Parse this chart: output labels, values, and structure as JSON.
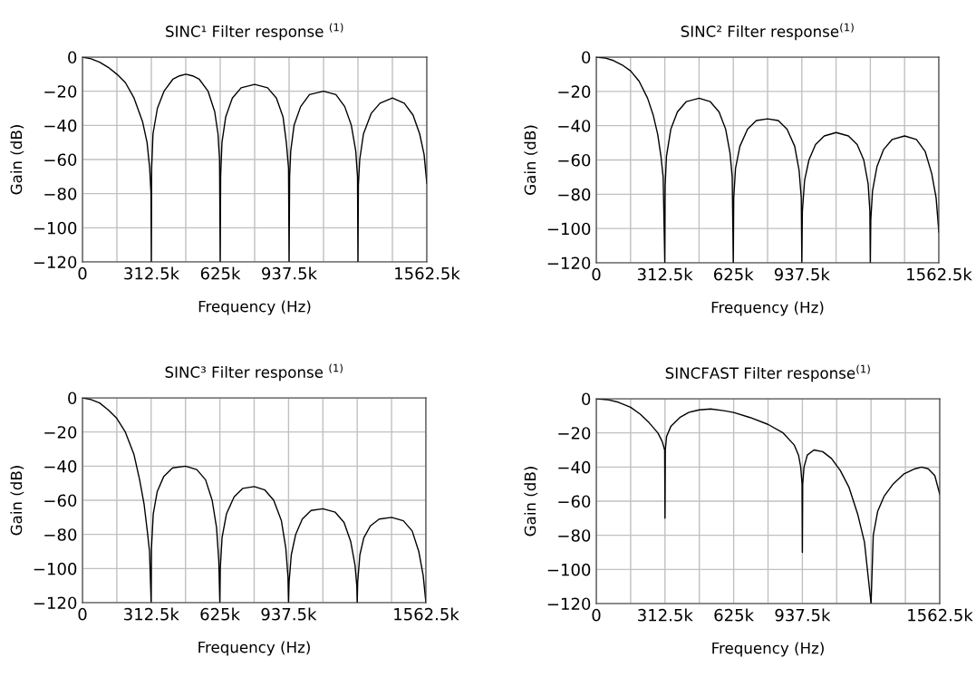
{
  "chart_data": [
    {
      "type": "line",
      "title": "SINC¹ Filter response $^{(1)}$",
      "xlabel": "Frequency (Hz)",
      "ylabel": "Gain (dB)",
      "grid": true,
      "line_style": "solid",
      "xlim": [
        0,
        1562500
      ],
      "ylim": [
        -120,
        0
      ],
      "xticks": [
        0,
        {
          "value": 156250,
          "label": null
        },
        {
          "value": 312500,
          "label": "312.5k"
        },
        {
          "value": 468750,
          "label": null
        },
        {
          "value": 625000,
          "label": "625k"
        },
        {
          "value": 781250,
          "label": null
        },
        {
          "value": 937500,
          "label": "937.5k"
        },
        {
          "value": 1093750,
          "label": null
        },
        {
          "value": 1250000,
          "label": null
        },
        {
          "value": 1406250,
          "label": null
        },
        {
          "value": 1562500,
          "label": "1562.5k"
        }
      ],
      "yticks": [
        0,
        {
          "value": -20,
          "label": "−20"
        },
        {
          "value": -40,
          "label": "−40"
        },
        {
          "value": -60,
          "label": "−60"
        },
        {
          "value": -80,
          "label": "−80"
        },
        {
          "value": -100,
          "label": "−100"
        },
        {
          "value": -120,
          "label": "−120"
        }
      ],
      "series": [
        {
          "color": "#000000",
          "x": [
            0,
            39000,
            78000,
            117000,
            156000,
            195000,
            234000,
            273000,
            293000,
            305000,
            311000,
            312500,
            314000,
            320000,
            340000,
            370000,
            410000,
            440000,
            468750,
            500000,
            530000,
            570000,
            600000,
            615000,
            622000,
            625000,
            627000,
            633000,
            650000,
            680000,
            720000,
            781250,
            840000,
            880000,
            910000,
            925000,
            935000,
            937500,
            940000,
            945000,
            960000,
            990000,
            1030000,
            1093750,
            1150000,
            1190000,
            1220000,
            1240000,
            1248000,
            1250000,
            1252000,
            1258000,
            1275000,
            1310000,
            1350000,
            1406250,
            1460000,
            1500000,
            1530000,
            1550000,
            1562500
          ],
          "values": [
            0,
            -1,
            -3,
            -6,
            -10,
            -15,
            -24,
            -38,
            -50,
            -65,
            -80,
            -120,
            -65,
            -45,
            -30,
            -20,
            -13,
            -11,
            -10,
            -11,
            -13,
            -20,
            -32,
            -45,
            -60,
            -120,
            -70,
            -50,
            -35,
            -24,
            -18,
            -16,
            -18,
            -24,
            -35,
            -50,
            -65,
            -120,
            -70,
            -55,
            -40,
            -29,
            -22,
            -20,
            -22,
            -29,
            -40,
            -55,
            -70,
            -120,
            -75,
            -60,
            -45,
            -33,
            -27,
            -24,
            -27,
            -34,
            -45,
            -57,
            -74
          ]
        }
      ]
    },
    {
      "type": "line",
      "title": "SINC² Filter response$^{(1)}$",
      "xlabel": "Frequency (Hz)",
      "ylabel": "Gain (dB)",
      "grid": true,
      "line_style": "solid",
      "xlim": [
        0,
        1562500
      ],
      "ylim": [
        -120,
        0
      ],
      "xticks": [
        0,
        {
          "value": 156250,
          "label": null
        },
        {
          "value": 312500,
          "label": "312.5k"
        },
        {
          "value": 468750,
          "label": null
        },
        {
          "value": 625000,
          "label": "625k"
        },
        {
          "value": 781250,
          "label": null
        },
        {
          "value": 937500,
          "label": "937.5k"
        },
        {
          "value": 1093750,
          "label": null
        },
        {
          "value": 1250000,
          "label": null
        },
        {
          "value": 1406250,
          "label": null
        },
        {
          "value": 1562500,
          "label": "1562.5k"
        }
      ],
      "yticks": [
        0,
        {
          "value": -20,
          "label": "−20"
        },
        {
          "value": -40,
          "label": "−40"
        },
        {
          "value": -60,
          "label": "−60"
        },
        {
          "value": -80,
          "label": "−80"
        },
        {
          "value": -100,
          "label": "−100"
        },
        {
          "value": -120,
          "label": "−120"
        }
      ],
      "series": [
        {
          "color": "#000000",
          "x": [
            0,
            39000,
            78000,
            117000,
            156000,
            195000,
            234000,
            260000,
            280000,
            295000,
            305000,
            312500,
            314000,
            320000,
            340000,
            370000,
            410000,
            468750,
            520000,
            560000,
            590000,
            610000,
            620000,
            625000,
            627000,
            635000,
            655000,
            690000,
            730000,
            781250,
            830000,
            870000,
            905000,
            925000,
            935000,
            937500,
            940000,
            950000,
            970000,
            1000000,
            1040000,
            1093750,
            1150000,
            1190000,
            1220000,
            1240000,
            1248000,
            1250000,
            1252000,
            1260000,
            1280000,
            1310000,
            1350000,
            1406250,
            1460000,
            1500000,
            1530000,
            1550000,
            1562500
          ],
          "values": [
            0,
            -0.5,
            -2,
            -4.5,
            -8,
            -14,
            -24,
            -34,
            -45,
            -58,
            -70,
            -120,
            -75,
            -58,
            -42,
            -32,
            -26,
            -24,
            -26,
            -32,
            -42,
            -56,
            -70,
            -120,
            -82,
            -65,
            -52,
            -42,
            -37,
            -36,
            -37,
            -42,
            -52,
            -66,
            -82,
            -120,
            -90,
            -72,
            -60,
            -51,
            -46,
            -44,
            -46,
            -51,
            -60,
            -74,
            -90,
            -120,
            -95,
            -78,
            -64,
            -54,
            -48,
            -46,
            -48,
            -55,
            -68,
            -82,
            -102
          ]
        }
      ]
    },
    {
      "type": "line",
      "title": "SINC³ Filter response $^{(1)}$",
      "xlabel": "Frequency (Hz)",
      "ylabel": "Gain (dB)",
      "grid": true,
      "line_style": "solid",
      "xlim": [
        0,
        1562500
      ],
      "ylim": [
        -120,
        0
      ],
      "xticks": [
        0,
        {
          "value": 156250,
          "label": null
        },
        {
          "value": 312500,
          "label": "312.5k"
        },
        {
          "value": 468750,
          "label": null
        },
        {
          "value": 625000,
          "label": "625k"
        },
        {
          "value": 781250,
          "label": null
        },
        {
          "value": 937500,
          "label": "937.5k"
        },
        {
          "value": 1093750,
          "label": null
        },
        {
          "value": 1250000,
          "label": null
        },
        {
          "value": 1406250,
          "label": null
        },
        {
          "value": 1562500,
          "label": "1562.5k"
        }
      ],
      "yticks": [
        0,
        {
          "value": -20,
          "label": "−20"
        },
        {
          "value": -40,
          "label": "−40"
        },
        {
          "value": -60,
          "label": "−60"
        },
        {
          "value": -80,
          "label": "−80"
        },
        {
          "value": -100,
          "label": "−100"
        },
        {
          "value": -120,
          "label": "−120"
        }
      ],
      "series": [
        {
          "color": "#000000",
          "x": [
            0,
            39000,
            78000,
            117000,
            156000,
            195000,
            234000,
            260000,
            280000,
            295000,
            305000,
            312500,
            314000,
            322000,
            340000,
            370000,
            410000,
            468750,
            520000,
            560000,
            590000,
            610000,
            620000,
            625000,
            627000,
            635000,
            655000,
            690000,
            730000,
            781250,
            830000,
            870000,
            905000,
            925000,
            935000,
            937500,
            940000,
            950000,
            970000,
            1000000,
            1040000,
            1093750,
            1150000,
            1190000,
            1220000,
            1240000,
            1248000,
            1250000,
            1252000,
            1262000,
            1280000,
            1310000,
            1350000,
            1406250,
            1460000,
            1500000,
            1530000,
            1550000,
            1562500
          ],
          "values": [
            0,
            -1,
            -3,
            -7,
            -12,
            -20,
            -33,
            -48,
            -62,
            -78,
            -90,
            -120,
            -88,
            -68,
            -55,
            -46,
            -41,
            -40,
            -42,
            -48,
            -60,
            -76,
            -95,
            -120,
            -100,
            -82,
            -68,
            -58,
            -53,
            -52,
            -54,
            -60,
            -72,
            -88,
            -105,
            -120,
            -108,
            -92,
            -80,
            -71,
            -66,
            -65,
            -67,
            -73,
            -84,
            -98,
            -110,
            -120,
            -108,
            -92,
            -82,
            -75,
            -71,
            -70,
            -72,
            -78,
            -90,
            -104,
            -120
          ]
        }
      ]
    },
    {
      "type": "line",
      "title": "SINCFAST Filter response$^{(1)}$",
      "xlabel": "Frequency (Hz)",
      "ylabel": "Gain (dB)",
      "grid": true,
      "line_style": "solid",
      "xlim": [
        0,
        1562500
      ],
      "ylim": [
        -120,
        0
      ],
      "xticks": [
        0,
        {
          "value": 156250,
          "label": null
        },
        {
          "value": 312500,
          "label": "312.5k"
        },
        {
          "value": 468750,
          "label": null
        },
        {
          "value": 625000,
          "label": "625k"
        },
        {
          "value": 781250,
          "label": null
        },
        {
          "value": 937500,
          "label": "937.5k"
        },
        {
          "value": 1093750,
          "label": null
        },
        {
          "value": 1250000,
          "label": null
        },
        {
          "value": 1406250,
          "label": null
        },
        {
          "value": 1562500,
          "label": "1562.5k"
        }
      ],
      "yticks": [
        0,
        {
          "value": -20,
          "label": "−20"
        },
        {
          "value": -40,
          "label": "−40"
        },
        {
          "value": -60,
          "label": "−60"
        },
        {
          "value": -80,
          "label": "−80"
        },
        {
          "value": -100,
          "label": "−100"
        },
        {
          "value": -120,
          "label": "−120"
        }
      ],
      "series": [
        {
          "color": "#000000",
          "x": [
            0,
            50000,
            100000,
            156000,
            200000,
            240000,
            280000,
            300000,
            311000,
            312500,
            314000,
            320000,
            340000,
            380000,
            420000,
            468750,
            520000,
            580000,
            625000,
            700000,
            781000,
            850000,
            900000,
            920000,
            930000,
            936000,
            937500,
            939000,
            945000,
            960000,
            990000,
            1030000,
            1070000,
            1110000,
            1150000,
            1190000,
            1220000,
            1250000,
            1260000,
            1280000,
            1310000,
            1350000,
            1400000,
            1450000,
            1480000,
            1510000,
            1540000,
            1562500
          ],
          "values": [
            0,
            -0.5,
            -2,
            -5,
            -9,
            -14,
            -20,
            -25,
            -30,
            -70,
            -30,
            -22,
            -16,
            -11,
            -8,
            -6.5,
            -6,
            -7,
            -8,
            -11,
            -15,
            -20,
            -27,
            -33,
            -40,
            -50,
            -90,
            -50,
            -40,
            -33,
            -30,
            -31,
            -35,
            -42,
            -52,
            -68,
            -84,
            -120,
            -80,
            -66,
            -57,
            -50,
            -44,
            -41,
            -40,
            -41,
            -45,
            -56
          ]
        }
      ]
    }
  ]
}
